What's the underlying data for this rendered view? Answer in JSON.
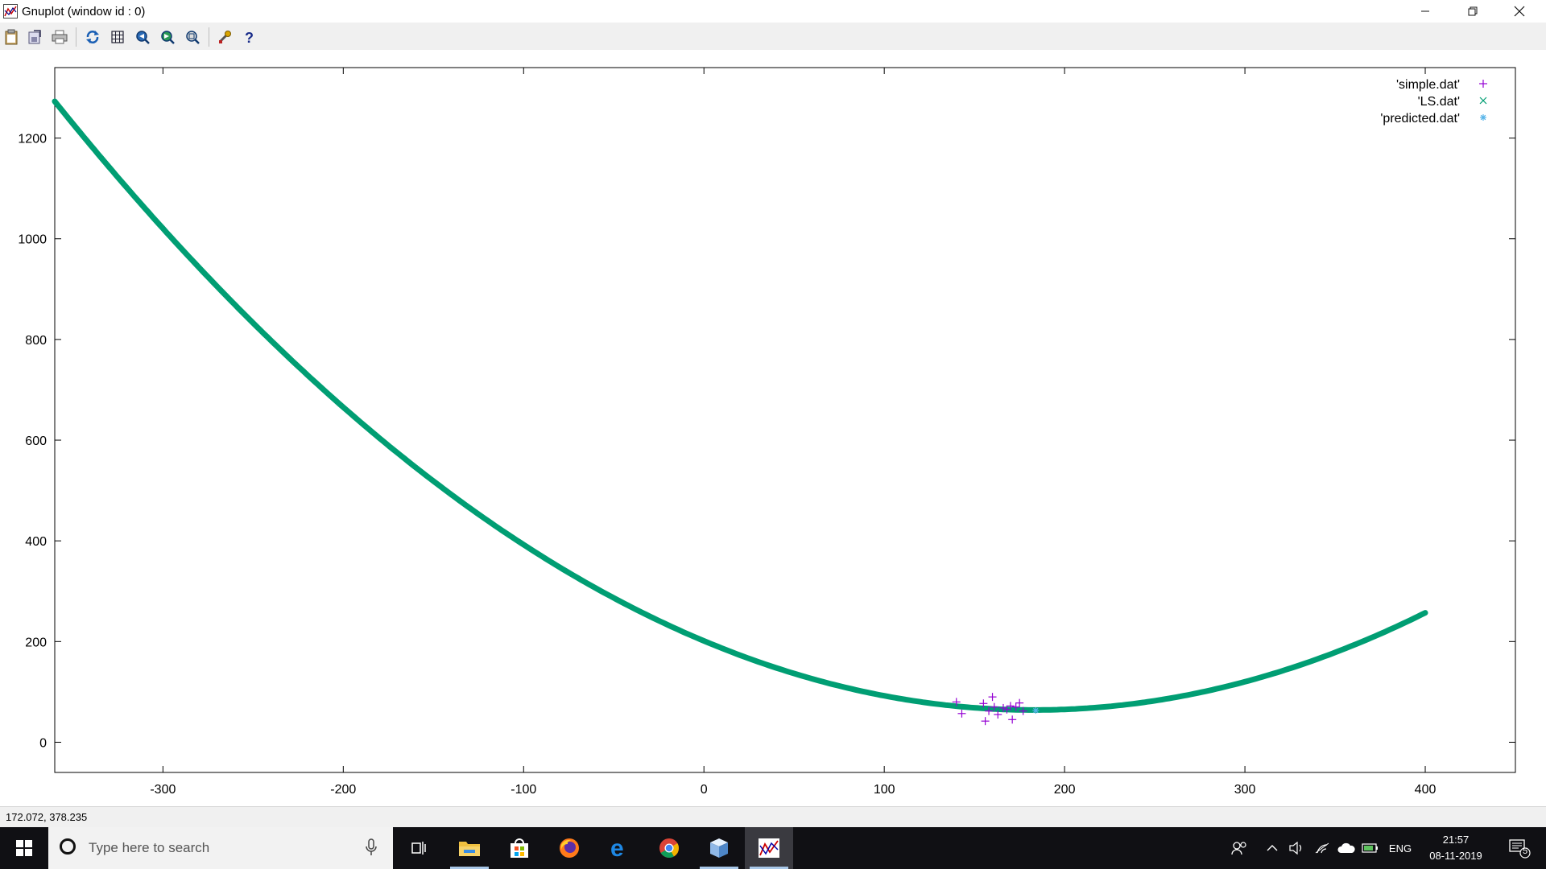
{
  "window": {
    "title": "Gnuplot (window id : 0)",
    "controls": {
      "minimize_icon": "minimize-icon",
      "restore_icon": "restore-icon",
      "close_icon": "close-icon"
    }
  },
  "toolbar": {
    "buttons": [
      {
        "name": "copy-to-clipboard",
        "icon": "clipboard-icon"
      },
      {
        "name": "export",
        "icon": "export-icon"
      },
      {
        "name": "print",
        "icon": "printer-icon"
      },
      {
        "name": "replot",
        "icon": "refresh-icon"
      },
      {
        "name": "toggle-grid",
        "icon": "grid-icon"
      },
      {
        "name": "zoom-previous",
        "icon": "zoom-previous-icon"
      },
      {
        "name": "zoom-next",
        "icon": "zoom-next-icon"
      },
      {
        "name": "unzoom",
        "icon": "unzoom-icon"
      },
      {
        "name": "options",
        "icon": "wrench-icon"
      },
      {
        "name": "help",
        "icon": "help-icon"
      }
    ]
  },
  "chart_data": {
    "type": "scatter",
    "title": "",
    "xlabel": "",
    "ylabel": "",
    "xlim": [
      -360,
      450
    ],
    "ylim": [
      -60,
      1340
    ],
    "xticks": [
      -300,
      -200,
      -100,
      0,
      100,
      200,
      300,
      400
    ],
    "yticks": [
      0,
      200,
      400,
      600,
      800,
      1000,
      1200
    ],
    "grid": false,
    "legend_position": "top-right",
    "series": [
      {
        "name": "'simple.dat'",
        "marker": "plus",
        "color": "#9400d3",
        "x": [
          140,
          143,
          155,
          156,
          158,
          160,
          161,
          163,
          166,
          168,
          170,
          171,
          173,
          175,
          177
        ],
        "y": [
          80,
          57,
          77,
          42,
          62,
          90,
          70,
          55,
          68,
          65,
          72,
          45,
          70,
          78,
          62
        ]
      },
      {
        "name": "'LS.dat'",
        "marker": "cross",
        "color": "#009e73",
        "curve": {
          "x_from": -360,
          "x_to": 400,
          "a": 0.0041,
          "xv": 183,
          "yv": 64
        }
      },
      {
        "name": "'predicted.dat'",
        "marker": "star",
        "color": "#56b4e9",
        "x": [
          184
        ],
        "y": [
          63
        ]
      }
    ]
  },
  "status": {
    "coordinates": "172.072,  378.235"
  },
  "taskbar": {
    "start_icon": "windows-logo-icon",
    "search": {
      "placeholder": "Type here to search",
      "icon": "cortana-circle-icon",
      "mic_icon": "microphone-icon"
    },
    "apps": [
      {
        "name": "task-view",
        "icon": "task-view-icon"
      },
      {
        "name": "file-explorer",
        "icon": "folder-icon"
      },
      {
        "name": "microsoft-store",
        "icon": "store-bag-icon"
      },
      {
        "name": "firefox",
        "icon": "firefox-icon"
      },
      {
        "name": "edge",
        "icon": "edge-icon"
      },
      {
        "name": "chrome",
        "icon": "chrome-icon"
      },
      {
        "name": "app-cube",
        "icon": "cube-icon"
      },
      {
        "name": "gnuplot",
        "icon": "gnuplot-icon"
      }
    ],
    "tray": {
      "language": "ENG",
      "time": "21:57",
      "date": "08-11-2019",
      "notification_count": "5"
    }
  }
}
